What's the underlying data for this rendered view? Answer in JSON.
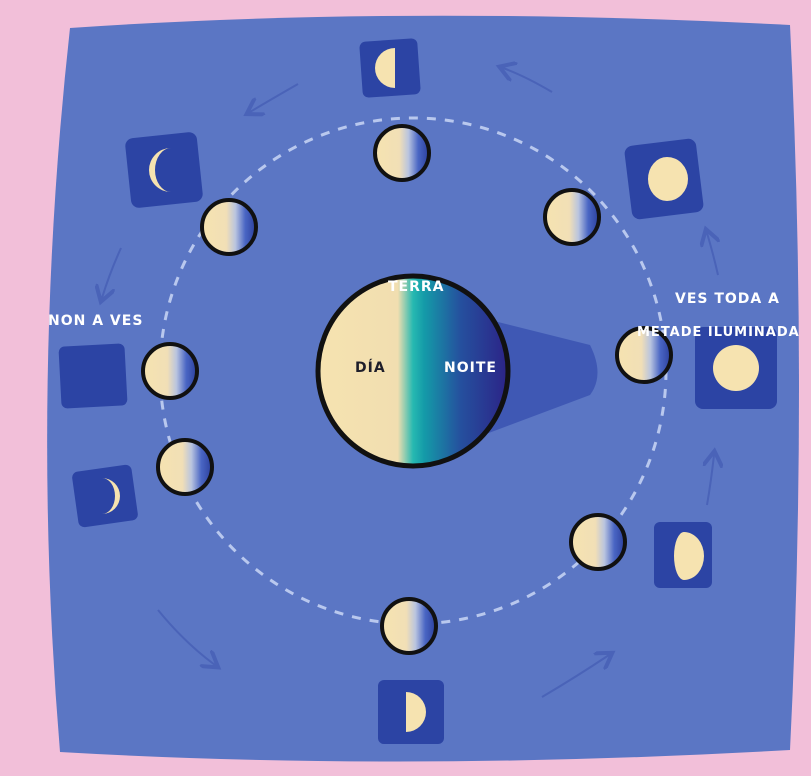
{
  "labels": {
    "earth": "TERRA",
    "day": "DÍA",
    "night": "NOITE",
    "not_visible": "NON A VES",
    "full_visible_1": "VES TODA A",
    "full_visible_2": "METADE ILUMINADA"
  },
  "colors": {
    "page_background": "#f2bfd9",
    "panel": "#5b76c4",
    "tile": "#2c44a4",
    "moon_light": "#f6e3b0",
    "orbit_dash": "#b9c8ee",
    "shadow": "#3f58b4",
    "earth_day": "#f6e3b0",
    "earth_teal": "#1fb5b0",
    "earth_night": "#2f2a8c",
    "label_text": "#ffffff"
  },
  "diagram": {
    "center_object": "earth",
    "orbiting_object": "moon",
    "moon_count": 8,
    "phase_tiles": [
      "first-quarter",
      "waxing-crescent",
      "new-moon",
      "waning-crescent",
      "last-quarter",
      "waning-gibbous",
      "full-moon",
      "waxing-gibbous"
    ]
  }
}
